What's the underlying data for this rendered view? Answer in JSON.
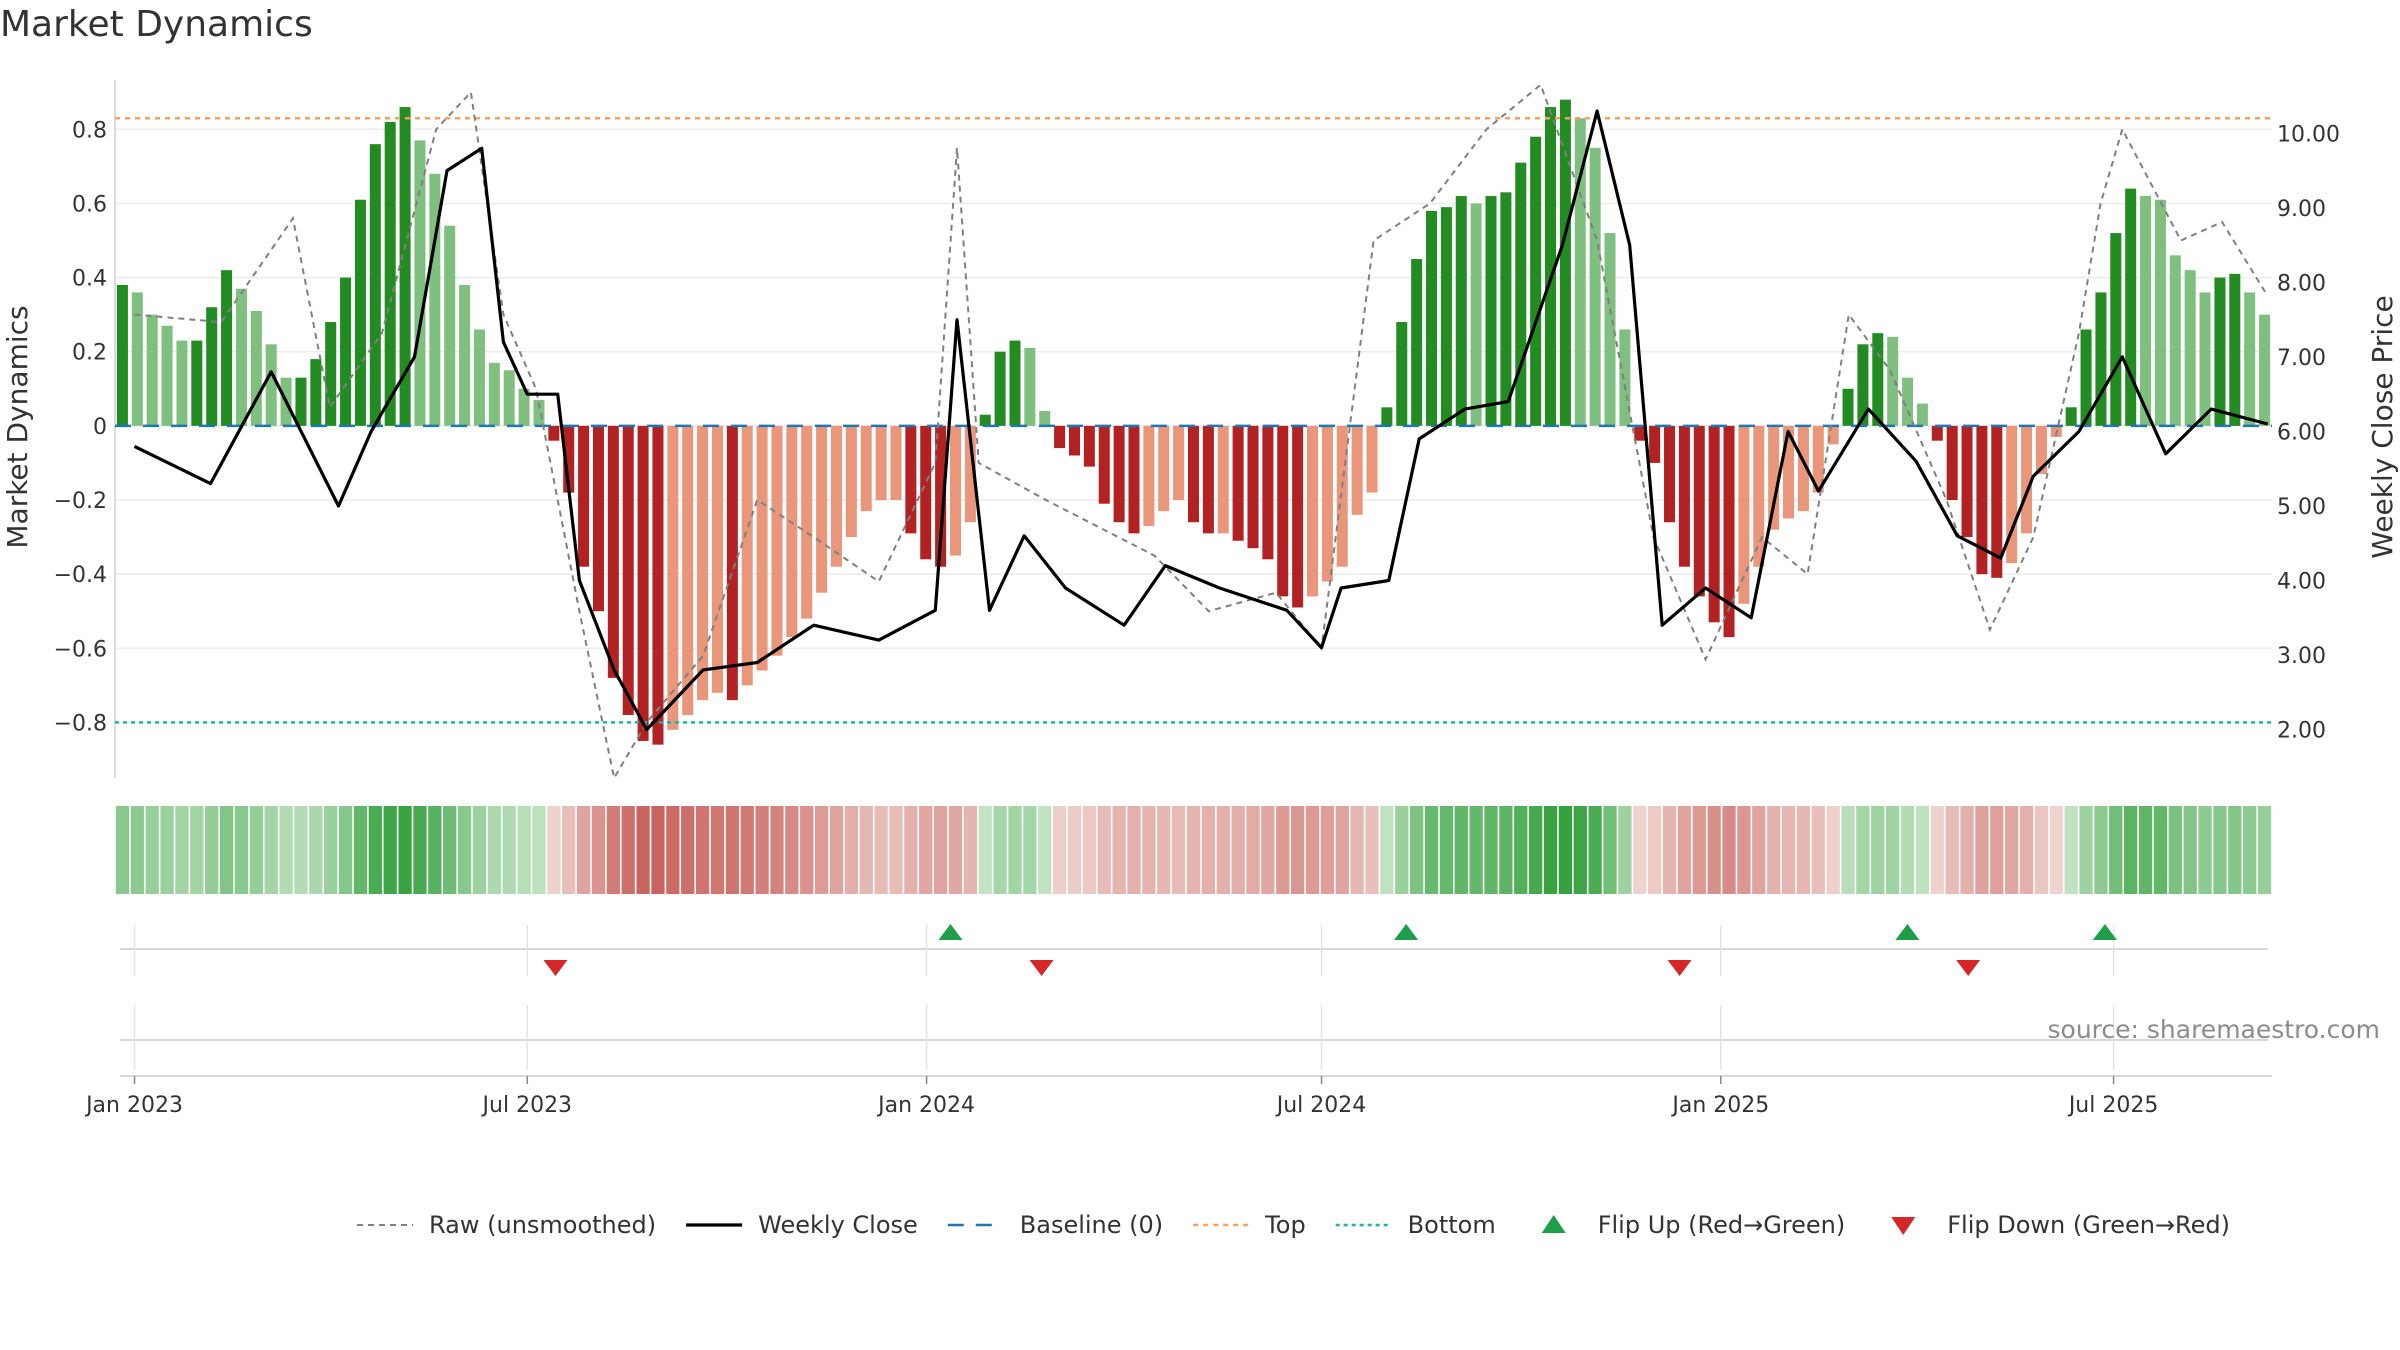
{
  "title": "Market Dynamics",
  "source": "source: sharemaestro.com",
  "colors": {
    "green_strong": "#228B22",
    "green_soft": "#7FBF7F",
    "red_strong": "#B22222",
    "red_soft": "#E9967A",
    "raw": "#808080",
    "close": "#000000",
    "baseline": "#1f77b4",
    "top": "#F4A460",
    "bottom": "#20B2AA",
    "flip_up": "#1E9E49",
    "flip_down": "#D62728"
  },
  "chart_data": {
    "type": "bar",
    "x_start": "2022-12-23",
    "x_end": "2025-09-12",
    "y_label": "Market Dynamics",
    "y2_label": "Weekly Close Price",
    "ylim": [
      -0.95,
      0.96
    ],
    "y2lim": [
      1.35,
      10.85
    ],
    "y_ticks": [
      "0.8",
      "0.6",
      "0.4",
      "0.2",
      "0",
      "−0.2",
      "−0.4",
      "−0.6",
      "−0.8"
    ],
    "y2_ticks": [
      "10.00",
      "9.00",
      "8.00",
      "7.00",
      "6.00",
      "5.00",
      "4.00",
      "3.00",
      "2.00"
    ],
    "x_ticks": [
      "Jan 2023",
      "Jul 2023",
      "Jan 2024",
      "Jul 2024",
      "Jan 2025",
      "Jul 2025"
    ],
    "top_level": 0.83,
    "bottom_level": -0.8,
    "baseline": 0,
    "series": [
      {
        "name": "Raw (unsmoothed)",
        "type": "line",
        "points": [
          [
            "2023-01-01",
            0.3
          ],
          [
            "2023-02-10",
            0.28
          ],
          [
            "2023-03-15",
            0.56
          ],
          [
            "2023-04-01",
            0.05
          ],
          [
            "2023-04-25",
            0.25
          ],
          [
            "2023-05-20",
            0.8
          ],
          [
            "2023-06-05",
            0.9
          ],
          [
            "2023-06-20",
            0.3
          ],
          [
            "2023-07-05",
            0.1
          ],
          [
            "2023-07-25",
            -0.5
          ],
          [
            "2023-08-10",
            -0.95
          ],
          [
            "2023-08-25",
            -0.8
          ],
          [
            "2023-09-20",
            -0.62
          ],
          [
            "2023-10-15",
            -0.2
          ],
          [
            "2023-11-10",
            -0.3
          ],
          [
            "2023-12-10",
            -0.42
          ],
          [
            "2024-01-05",
            -0.1
          ],
          [
            "2024-01-15",
            0.75
          ],
          [
            "2024-01-25",
            -0.1
          ],
          [
            "2024-02-25",
            -0.2
          ],
          [
            "2024-04-15",
            -0.35
          ],
          [
            "2024-05-10",
            -0.5
          ],
          [
            "2024-06-10",
            -0.45
          ],
          [
            "2024-07-01",
            -0.6
          ],
          [
            "2024-07-25",
            0.5
          ],
          [
            "2024-08-20",
            0.6
          ],
          [
            "2024-09-15",
            0.8
          ],
          [
            "2024-10-10",
            0.92
          ],
          [
            "2024-11-05",
            0.5
          ],
          [
            "2024-12-01",
            -0.3
          ],
          [
            "2024-12-25",
            -0.63
          ],
          [
            "2025-01-20",
            -0.3
          ],
          [
            "2025-02-10",
            -0.4
          ],
          [
            "2025-03-01",
            0.3
          ],
          [
            "2025-03-20",
            0.15
          ],
          [
            "2025-04-15",
            -0.2
          ],
          [
            "2025-05-05",
            -0.55
          ],
          [
            "2025-05-25",
            -0.3
          ],
          [
            "2025-06-15",
            0.25
          ],
          [
            "2025-06-25",
            0.6
          ],
          [
            "2025-07-05",
            0.8
          ],
          [
            "2025-08-01",
            0.5
          ],
          [
            "2025-08-20",
            0.55
          ],
          [
            "2025-09-10",
            0.35
          ]
        ]
      },
      {
        "name": "Weekly Close",
        "type": "line",
        "axis": "y2",
        "points": [
          [
            "2023-01-01",
            5.8
          ],
          [
            "2023-02-05",
            5.3
          ],
          [
            "2023-03-05",
            6.8
          ],
          [
            "2023-04-05",
            5.0
          ],
          [
            "2023-04-20",
            6.0
          ],
          [
            "2023-05-10",
            7.0
          ],
          [
            "2023-05-25",
            9.5
          ],
          [
            "2023-06-10",
            9.8
          ],
          [
            "2023-06-20",
            7.2
          ],
          [
            "2023-07-01",
            6.5
          ],
          [
            "2023-07-15",
            6.5
          ],
          [
            "2023-07-25",
            4.0
          ],
          [
            "2023-08-10",
            2.8
          ],
          [
            "2023-08-25",
            2.0
          ],
          [
            "2023-09-20",
            2.8
          ],
          [
            "2023-10-15",
            2.9
          ],
          [
            "2023-11-10",
            3.4
          ],
          [
            "2023-12-10",
            3.2
          ],
          [
            "2024-01-05",
            3.6
          ],
          [
            "2024-01-15",
            7.5
          ],
          [
            "2024-01-30",
            3.6
          ],
          [
            "2024-02-15",
            4.6
          ],
          [
            "2024-03-05",
            3.9
          ],
          [
            "2024-04-01",
            3.4
          ],
          [
            "2024-04-20",
            4.2
          ],
          [
            "2024-05-15",
            3.9
          ],
          [
            "2024-06-15",
            3.6
          ],
          [
            "2024-07-01",
            3.1
          ],
          [
            "2024-07-10",
            3.9
          ],
          [
            "2024-08-01",
            4.0
          ],
          [
            "2024-08-15",
            5.9
          ],
          [
            "2024-09-05",
            6.3
          ],
          [
            "2024-09-25",
            6.4
          ],
          [
            "2024-10-20",
            8.5
          ],
          [
            "2024-11-05",
            10.3
          ],
          [
            "2024-11-20",
            8.5
          ],
          [
            "2024-12-05",
            3.4
          ],
          [
            "2024-12-25",
            3.9
          ],
          [
            "2025-01-15",
            3.5
          ],
          [
            "2025-02-01",
            6.0
          ],
          [
            "2025-02-15",
            5.2
          ],
          [
            "2025-03-10",
            6.3
          ],
          [
            "2025-04-01",
            5.6
          ],
          [
            "2025-04-20",
            4.6
          ],
          [
            "2025-05-10",
            4.3
          ],
          [
            "2025-05-25",
            5.4
          ],
          [
            "2025-06-15",
            6.0
          ],
          [
            "2025-07-05",
            7.0
          ],
          [
            "2025-07-25",
            5.7
          ],
          [
            "2025-08-15",
            6.3
          ],
          [
            "2025-09-10",
            6.1
          ]
        ]
      },
      {
        "name": "Market Dynamics",
        "type": "bar",
        "values": [
          0.38,
          0.36,
          0.3,
          0.27,
          0.23,
          0.23,
          0.32,
          0.42,
          0.37,
          0.31,
          0.22,
          0.13,
          0.13,
          0.18,
          0.28,
          0.4,
          0.61,
          0.76,
          0.82,
          0.86,
          0.77,
          0.68,
          0.54,
          0.38,
          0.26,
          0.17,
          0.15,
          0.1,
          0.07,
          -0.04,
          -0.18,
          -0.38,
          -0.5,
          -0.68,
          -0.78,
          -0.85,
          -0.86,
          -0.82,
          -0.78,
          -0.74,
          -0.72,
          -0.74,
          -0.7,
          -0.66,
          -0.62,
          -0.57,
          -0.52,
          -0.45,
          -0.38,
          -0.3,
          -0.23,
          -0.2,
          -0.2,
          -0.29,
          -0.36,
          -0.38,
          -0.35,
          -0.26,
          0.03,
          0.2,
          0.23,
          0.21,
          0.04,
          -0.06,
          -0.08,
          -0.11,
          -0.21,
          -0.26,
          -0.29,
          -0.27,
          -0.23,
          -0.2,
          -0.26,
          -0.29,
          -0.29,
          -0.31,
          -0.33,
          -0.36,
          -0.46,
          -0.49,
          -0.46,
          -0.42,
          -0.38,
          -0.24,
          -0.18,
          0.05,
          0.28,
          0.45,
          0.58,
          0.59,
          0.62,
          0.6,
          0.62,
          0.63,
          0.71,
          0.78,
          0.86,
          0.88,
          0.83,
          0.75,
          0.52,
          0.26,
          -0.04,
          -0.1,
          -0.26,
          -0.38,
          -0.46,
          -0.53,
          -0.57,
          -0.48,
          -0.38,
          -0.28,
          -0.25,
          -0.23,
          -0.18,
          -0.05,
          0.1,
          0.22,
          0.25,
          0.24,
          0.13,
          0.06,
          -0.04,
          -0.2,
          -0.3,
          -0.4,
          -0.41,
          -0.37,
          -0.29,
          -0.13,
          -0.03,
          0.05,
          0.26,
          0.36,
          0.52,
          0.64,
          0.62,
          0.61,
          0.46,
          0.42,
          0.36,
          0.4,
          0.41,
          0.36,
          0.3
        ]
      },
      {
        "name": "Baseline (0)",
        "type": "hline"
      },
      {
        "name": "Top",
        "type": "hline"
      },
      {
        "name": "Bottom",
        "type": "hline"
      },
      {
        "name": "Flip Up (Red→Green)",
        "type": "marker",
        "dates": [
          "2024-01-12",
          "2024-08-09",
          "2025-03-28",
          "2025-06-27"
        ]
      },
      {
        "name": "Flip Down (Green→Red)",
        "type": "marker",
        "dates": [
          "2023-07-14",
          "2024-02-23",
          "2024-12-13",
          "2025-04-25"
        ]
      }
    ],
    "legend_position": "bottom"
  }
}
